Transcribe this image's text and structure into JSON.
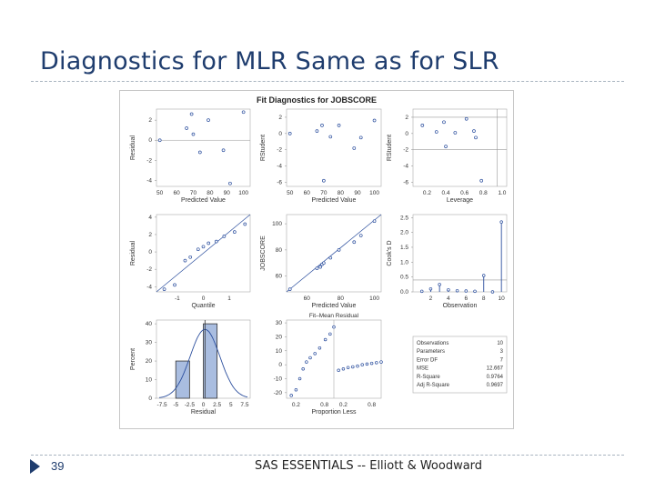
{
  "slide": {
    "title": "Diagnostics for MLR Same as for SLR",
    "number": "39",
    "footer": "SAS ESSENTIALS -- Elliott & Woodward"
  },
  "colors": {
    "title": "#1f3d6e",
    "marker": "#2c4f9e",
    "line": "#2c4f9e",
    "ref": "#999999",
    "hist": "#a9bde0"
  },
  "chart_data": {
    "type": "scatter",
    "title": "Fit Diagnostics for JOBSCORE",
    "panels": [
      {
        "id": "residual-vs-predicted",
        "type": "scatter",
        "xlabel": "Predicted Value",
        "ylabel": "Residual",
        "xlim": [
          48,
          104
        ],
        "ylim": [
          -4.6,
          3.1
        ],
        "xticks": [
          "50",
          "60",
          "70",
          "80",
          "90",
          "100"
        ],
        "yticks": [
          "2",
          "0",
          "-2",
          "-4"
        ],
        "x": [
          50,
          66,
          69,
          70,
          74,
          79,
          88,
          92,
          100
        ],
        "y": [
          0,
          1.2,
          2.6,
          0.6,
          -1.2,
          2.0,
          -1.0,
          -4.3,
          2.8
        ]
      },
      {
        "id": "rstudent-vs-predicted",
        "type": "scatter",
        "xlabel": "Predicted Value",
        "ylabel": "RStudent",
        "xlim": [
          48,
          104
        ],
        "ylim": [
          -6.5,
          3
        ],
        "xticks": [
          "50",
          "60",
          "70",
          "80",
          "90",
          "100"
        ],
        "yticks": [
          "2",
          "0",
          "-2",
          "-4",
          "-6"
        ],
        "x": [
          50,
          66,
          69,
          70,
          74,
          79,
          88,
          92,
          100
        ],
        "y": [
          0,
          0.3,
          1.0,
          -5.8,
          -0.4,
          1.0,
          -1.8,
          -0.5,
          1.6
        ]
      },
      {
        "id": "rstudent-vs-leverage",
        "type": "scatter",
        "xlabel": "Leverage",
        "ylabel": "RStudent",
        "xlim": [
          0.05,
          1.05
        ],
        "ylim": [
          -6.5,
          3
        ],
        "xticks": [
          "0.2",
          "0.4",
          "0.6",
          "0.8",
          "1.0"
        ],
        "yticks": [
          "2",
          "0",
          "-2",
          "-4",
          "-6"
        ],
        "x": [
          0.15,
          0.3,
          0.38,
          0.4,
          0.5,
          0.62,
          0.7,
          0.72,
          0.78
        ],
        "y": [
          1.0,
          0.2,
          1.4,
          -1.6,
          0.1,
          1.8,
          0.3,
          -0.5,
          -5.8
        ],
        "ref_lines": [
          {
            "axis": "x",
            "value": 0.95
          },
          {
            "axis": "y",
            "value": 2
          },
          {
            "axis": "y",
            "value": -2
          }
        ]
      },
      {
        "id": "qq-plot",
        "type": "scatter",
        "xlabel": "Quantile",
        "ylabel": "Residual",
        "xlim": [
          -1.8,
          1.8
        ],
        "ylim": [
          -4.6,
          4.3
        ],
        "xticks": [
          "-1",
          "0",
          "1"
        ],
        "yticks": [
          "4",
          "2",
          "0",
          "-2",
          "-4"
        ],
        "x": [
          -1.5,
          -1.1,
          -0.7,
          -0.5,
          -0.2,
          0.0,
          0.2,
          0.5,
          0.8,
          1.2,
          1.6
        ],
        "y": [
          -4.3,
          -3.8,
          -1.0,
          -0.6,
          0.3,
          0.6,
          1.0,
          1.2,
          1.8,
          2.3,
          3.2
        ]
      },
      {
        "id": "jobscore-vs-predicted",
        "type": "scatter",
        "xlabel": "Predicted Value",
        "ylabel": "JOBSCORE",
        "xlim": [
          48,
          104
        ],
        "ylim": [
          48,
          107
        ],
        "xticks": [
          "60",
          "80",
          "100"
        ],
        "yticks": [
          "100",
          "80",
          "60"
        ],
        "x": [
          50,
          66,
          68,
          69,
          70,
          74,
          79,
          88,
          92,
          100
        ],
        "y": [
          50,
          66,
          67,
          69,
          70,
          74,
          80,
          86,
          91,
          102
        ]
      },
      {
        "id": "cooks-d",
        "type": "bar",
        "xlabel": "Observation",
        "ylabel": "Cook's D",
        "xlim": [
          0,
          10.6
        ],
        "ylim": [
          0,
          2.6
        ],
        "xticks": [
          "2",
          "4",
          "6",
          "8",
          "10"
        ],
        "yticks": [
          "2.5",
          "2.0",
          "1.5",
          "1.0",
          "0.5",
          "0.0"
        ],
        "x": [
          1,
          2,
          3,
          4,
          5,
          6,
          7,
          8,
          9,
          10
        ],
        "y": [
          0.02,
          0.1,
          0.25,
          0.07,
          0.04,
          0.03,
          0.02,
          0.55,
          0.0,
          2.35
        ],
        "ref_lines": [
          {
            "axis": "y",
            "value": 0.4
          }
        ]
      },
      {
        "id": "residual-histogram",
        "type": "bar",
        "xlabel": "Residual",
        "ylabel": "Percent",
        "xlim": [
          -8.5,
          8.5
        ],
        "ylim": [
          0,
          42
        ],
        "xticks": [
          "-7.5",
          "-5",
          "-2.5",
          "0",
          "2.5",
          "5",
          "7.5"
        ],
        "yticks": [
          "40",
          "30",
          "20",
          "10",
          "0"
        ],
        "bins": [
          [
            -5,
            -2.5,
            20
          ],
          [
            0,
            2.5,
            40
          ]
        ]
      },
      {
        "id": "residual-fit-spread",
        "type": "scatter",
        "title": "Fit–Mean   Residual",
        "xlabel": "Proportion Less",
        "ylabel": "",
        "xlim": [
          0,
          1.1
        ],
        "ylim": [
          -24,
          32
        ],
        "xticks": [
          "0.2",
          "0.8",
          "0.2",
          "0.8"
        ],
        "yticks": [
          "30",
          "20",
          "10",
          "0",
          "-10",
          "-20"
        ],
        "fit_x": [
          0.1,
          0.2,
          0.28,
          0.35,
          0.42,
          0.5,
          0.6,
          0.7,
          0.82,
          0.92,
          1.0
        ],
        "fit_y": [
          -22,
          -18,
          -10,
          -3,
          2,
          5,
          8,
          12,
          18,
          22,
          27
        ],
        "resid_x": [
          0.1,
          0.2,
          0.3,
          0.4,
          0.5,
          0.6,
          0.7,
          0.8,
          0.9,
          1.0
        ],
        "resid_y": [
          -4,
          -3,
          -2,
          -1.5,
          -1,
          0,
          0.5,
          1,
          1.5,
          2
        ]
      }
    ],
    "stats_table": [
      {
        "label": "Observations",
        "value": "10"
      },
      {
        "label": "Parameters",
        "value": "3"
      },
      {
        "label": "Error DF",
        "value": "7"
      },
      {
        "label": "MSE",
        "value": "12.667"
      },
      {
        "label": "R-Square",
        "value": "0.9764"
      },
      {
        "label": "Adj R-Square",
        "value": "0.9697"
      }
    ]
  }
}
